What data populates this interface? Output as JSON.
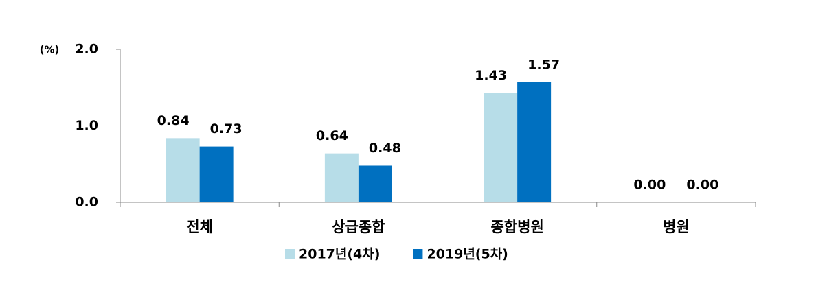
{
  "chart_data": {
    "type": "bar",
    "y_label": "(%)",
    "categories": [
      "전체",
      "상급종합",
      "종합병원",
      "병원"
    ],
    "series": [
      {
        "name": "2017년(4차)",
        "color": "#b7dde8",
        "values": [
          0.84,
          0.64,
          1.43,
          0
        ],
        "value_labels": [
          "0.84",
          "0.64",
          "1.43",
          "0.00"
        ]
      },
      {
        "name": "2019년(5차)",
        "color": "#0070c0",
        "values": [
          0.73,
          0.48,
          1.57,
          0
        ],
        "value_labels": [
          "0.73",
          "0.48",
          "1.57",
          "0.00"
        ]
      }
    ],
    "ylim": [
      0,
      2
    ],
    "yticks": [
      {
        "value": 0,
        "label": "0.0"
      },
      {
        "value": 1,
        "label": "1.0"
      },
      {
        "value": 2,
        "label": "2.0"
      }
    ],
    "legend": "bottom"
  }
}
